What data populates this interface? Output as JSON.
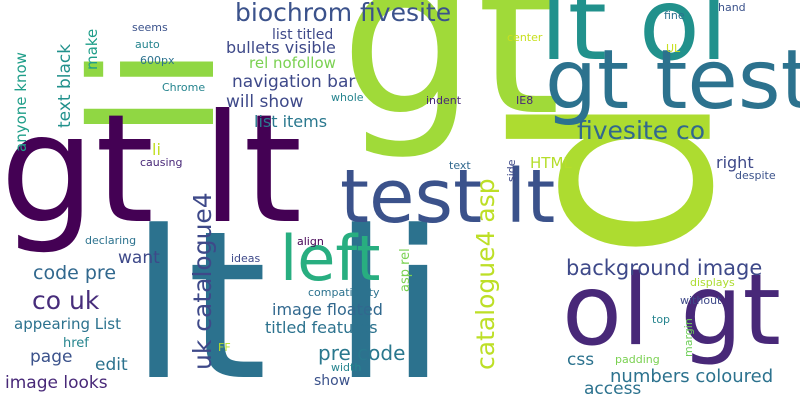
{
  "words": [
    {
      "text": "p",
      "color": "#addc30",
      "rotated": true
    },
    {
      "text": "gt",
      "color": "#a0da39",
      "rotated": false
    },
    {
      "text": "li",
      "color": "#90d743",
      "rotated": true
    },
    {
      "text": "lt li",
      "color": "#2c728e",
      "rotated": false
    },
    {
      "text": "gt lt",
      "color": "#440154",
      "rotated": false
    },
    {
      "text": "lt ol",
      "color": "#21918c",
      "rotated": false
    },
    {
      "text": "gt test",
      "color": "#2c728e",
      "rotated": false
    },
    {
      "text": "ol gt",
      "color": "#482878",
      "rotated": false
    },
    {
      "text": "test lt",
      "color": "#3b528b",
      "rotated": false
    },
    {
      "text": "left",
      "color": "#28ae80",
      "rotated": false
    },
    {
      "text": "biochrom fivesite",
      "color": "#3b528b",
      "rotated": false
    },
    {
      "text": "fivesite co",
      "color": "#31688e",
      "rotated": false
    },
    {
      "text": "uk catalogue4",
      "color": "#3e4989",
      "rotated": true
    },
    {
      "text": "catalogue4 asp",
      "color": "#bddf26",
      "rotated": true
    },
    {
      "text": "background image",
      "color": "#3e4989",
      "rotated": false
    },
    {
      "text": "co uk",
      "color": "#472d7b",
      "rotated": false
    },
    {
      "text": "code pre",
      "color": "#31688e",
      "rotated": false
    },
    {
      "text": "pre code",
      "color": "#2a788e",
      "rotated": false
    },
    {
      "text": "numbers coloured",
      "color": "#2c728e",
      "rotated": false
    },
    {
      "text": "bullets visible",
      "color": "#3e4989",
      "rotated": false
    },
    {
      "text": "navigation bar",
      "color": "#3e4989",
      "rotated": false
    },
    {
      "text": "will show",
      "color": "#3e4989",
      "rotated": false
    },
    {
      "text": "list titled",
      "color": "#3e4989",
      "rotated": false
    },
    {
      "text": "list items",
      "color": "#2a788e",
      "rotated": false
    },
    {
      "text": "rel nofollow",
      "color": "#7ad151",
      "rotated": false
    },
    {
      "text": "image floated",
      "color": "#31688e",
      "rotated": false
    },
    {
      "text": "titled features",
      "color": "#2c728e",
      "rotated": false
    },
    {
      "text": "appearing List",
      "color": "#2c728e",
      "rotated": false
    },
    {
      "text": "image looks",
      "color": "#482878",
      "rotated": false
    },
    {
      "text": "text black",
      "color": "#21918c",
      "rotated": true
    },
    {
      "text": "anyone know",
      "color": "#1f9e89",
      "rotated": true
    },
    {
      "text": "make",
      "color": "#1f9e89",
      "rotated": true
    },
    {
      "text": "HTML",
      "color": "#b5de2b",
      "rotated": false
    },
    {
      "text": "right",
      "color": "#3e4989",
      "rotated": false
    },
    {
      "text": "want",
      "color": "#3e4989",
      "rotated": false
    },
    {
      "text": "page",
      "color": "#3b528b",
      "rotated": false
    },
    {
      "text": "edit",
      "color": "#2c728e",
      "rotated": false
    },
    {
      "text": "css",
      "color": "#2c728e",
      "rotated": false
    },
    {
      "text": "access",
      "color": "#2c728e",
      "rotated": false
    },
    {
      "text": "href",
      "color": "#25848e",
      "rotated": false
    },
    {
      "text": "show",
      "color": "#3b528b",
      "rotated": false
    },
    {
      "text": "li",
      "color": "#c2df23",
      "rotated": false
    },
    {
      "text": "asp rel",
      "color": "#7ad151",
      "rotated": true
    },
    {
      "text": "seems",
      "color": "#3b528b",
      "rotated": false
    },
    {
      "text": "auto",
      "color": "#25848e",
      "rotated": false
    },
    {
      "text": "600px",
      "color": "#2c728e",
      "rotated": false
    },
    {
      "text": "Chrome",
      "color": "#25848e",
      "rotated": false
    },
    {
      "text": "whole",
      "color": "#25848e",
      "rotated": false
    },
    {
      "text": "indent",
      "color": "#482878",
      "rotated": false
    },
    {
      "text": "IE8",
      "color": "#482878",
      "rotated": false
    },
    {
      "text": "causing",
      "color": "#482878",
      "rotated": false
    },
    {
      "text": "text",
      "color": "#31688e",
      "rotated": false
    },
    {
      "text": "side",
      "color": "#3e4989",
      "rotated": true
    },
    {
      "text": "despite",
      "color": "#3b528b",
      "rotated": false
    },
    {
      "text": "declaring",
      "color": "#2c728e",
      "rotated": false
    },
    {
      "text": "ideas",
      "color": "#3e4989",
      "rotated": false
    },
    {
      "text": "align",
      "color": "#440154",
      "rotated": false
    },
    {
      "text": "compatibility",
      "color": "#2c728e",
      "rotated": false
    },
    {
      "text": "displays",
      "color": "#addc30",
      "rotated": false
    },
    {
      "text": "without",
      "color": "#3e4989",
      "rotated": false
    },
    {
      "text": "top",
      "color": "#25848e",
      "rotated": false
    },
    {
      "text": "margin",
      "color": "#6ece58",
      "rotated": true
    },
    {
      "text": "padding",
      "color": "#7ad151",
      "rotated": false
    },
    {
      "text": "width",
      "color": "#25848e",
      "rotated": false
    },
    {
      "text": "FF",
      "color": "#b5de2b",
      "rotated": false
    },
    {
      "text": "fine",
      "color": "#2c728e",
      "rotated": false
    },
    {
      "text": "hand",
      "color": "#3b528b",
      "rotated": false
    },
    {
      "text": "center",
      "color": "#c8e020",
      "rotated": false
    },
    {
      "text": "UL",
      "color": "#c8e020",
      "rotated": false
    }
  ]
}
